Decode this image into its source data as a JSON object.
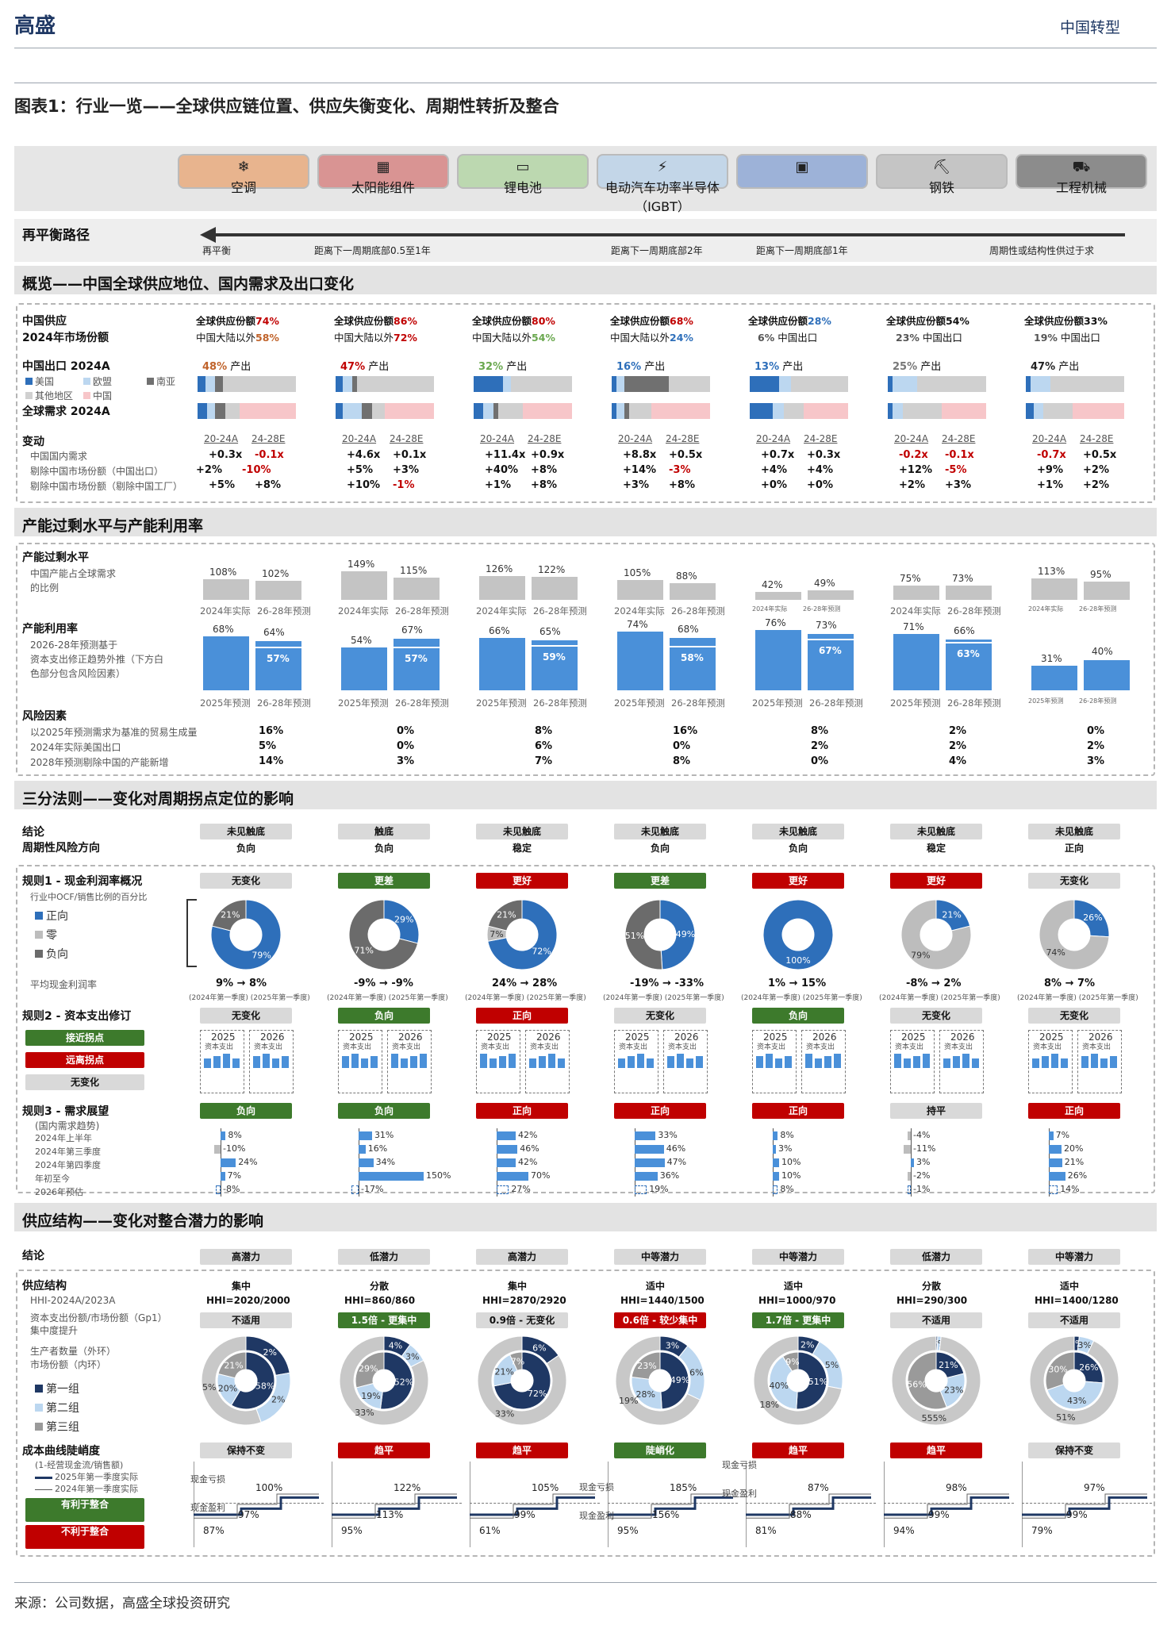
{
  "header": {
    "brand": "高盛",
    "section": "中国转型",
    "title": "图表1：行业一览——全球供应链位置、供应失衡变化、周期性转折及整合"
  },
  "industries": [
    {
      "name": "空调",
      "icon": "air-conditioner-icon",
      "color": "#e8b48e"
    },
    {
      "name": "太阳能组件",
      "icon": "solar-panel-icon",
      "color": "#d99493"
    },
    {
      "name": "锂电池",
      "icon": "battery-icon",
      "color": "#bcd8b0"
    },
    {
      "name": "电动汽车功率半导体（IGBT）",
      "icon": "ev-charger-icon",
      "color": "#c3d6e8"
    },
    {
      "name": "",
      "icon": "chip-icon",
      "color": "#9db2d8"
    },
    {
      "name": "钢铁",
      "icon": "mine-cart-icon",
      "color": "#c5c5c5"
    },
    {
      "name": "工程机械",
      "icon": "excavator-icon",
      "color": "#8c8c8c"
    }
  ],
  "rebalance": {
    "title": "再平衡路径",
    "labels": [
      "再平衡",
      "距离下一周期底部0.5至1年",
      "距离下一周期底部2年",
      "距离下一周期底部1年",
      "周期性或结构性供过于求"
    ]
  },
  "overview": {
    "title": "概览——中国全球供应地位、国内需求及出口变化",
    "supply_label": "中国供应",
    "share_label": "2024年市场份额",
    "export_label": "中国出口 2024A",
    "demand_label": "全球需求 2024A",
    "legend": [
      "美国",
      "欧盟",
      "南亚",
      "其他地区",
      "中国"
    ],
    "global_share_prefix": "全球供应份额",
    "global_shares": [
      "74%",
      "86%",
      "80%",
      "68%",
      "28%",
      "54%",
      "33%"
    ],
    "ex_china": [
      {
        "prefix": "中国大陆以外",
        "value": "58%"
      },
      {
        "prefix": "中国大陆以外",
        "value": "72%"
      },
      {
        "prefix": "中国大陆以外",
        "value": "54%"
      },
      {
        "prefix": "中国大陆以外",
        "value": "24%"
      },
      {
        "prefix": "中国出口",
        "value": "6%"
      },
      {
        "prefix": "中国出口",
        "value": "23%"
      },
      {
        "prefix": "中国出口",
        "value": "19%"
      }
    ],
    "exports_pct": [
      "48%",
      "47%",
      "32%",
      "16%",
      "13%",
      "25%",
      "47%"
    ],
    "export_suffix": "产出",
    "change_label": "变动",
    "change_rows": [
      "中国国内需求",
      "剔除中国市场份额（中国出口）",
      "剔除中国市场份额（剔除中国工厂）"
    ],
    "periods": [
      "20-24A",
      "24-28E"
    ],
    "changes": [
      [
        [
          "+0.3x",
          "-0.1x"
        ],
        [
          "+2%",
          "-10%"
        ],
        [
          "+5%",
          "+8%"
        ]
      ],
      [
        [
          "+4.6x",
          "+0.1x"
        ],
        [
          "+5%",
          "+3%"
        ],
        [
          "+10%",
          "-1%"
        ]
      ],
      [
        [
          "+11.4x",
          "+0.9x"
        ],
        [
          "+40%",
          "+8%"
        ],
        [
          "+1%",
          "+8%"
        ]
      ],
      [
        [
          "+8.8x",
          "+0.5x"
        ],
        [
          "+14%",
          "-3%"
        ],
        [
          "+3%",
          "+8%"
        ]
      ],
      [
        [
          "+0.7x",
          "+0.3x"
        ],
        [
          "+4%",
          "+4%"
        ],
        [
          "+0%",
          "+0%"
        ]
      ],
      [
        [
          "-0.2x",
          "-0.1x"
        ],
        [
          "+12%",
          "-5%"
        ],
        [
          "+2%",
          "+3%"
        ]
      ],
      [
        [
          "-0.7x",
          "+0.5x"
        ],
        [
          "+9%",
          "+2%"
        ],
        [
          "+1%",
          "+2%"
        ]
      ]
    ]
  },
  "capacity": {
    "title": "产能过剩水平与产能利用率",
    "excess_label": "产能过剩水平",
    "excess_sub": [
      "中国产能占全球需求",
      "的比例"
    ],
    "excess": [
      [
        "108%",
        "102%"
      ],
      [
        "149%",
        "115%"
      ],
      [
        "126%",
        "122%"
      ],
      [
        "105%",
        "88%"
      ],
      [
        "42%",
        "49%"
      ],
      [
        "75%",
        "73%"
      ],
      [
        "113%",
        "95%"
      ]
    ],
    "excess_x": [
      "2024年实际",
      "26-28年预测"
    ],
    "util_label": "产能利用率",
    "util_sub": [
      "2026-28年预测基于",
      "资本支出修正趋势外推（下方白",
      "色部分包含风险因素）"
    ],
    "util": [
      [
        "68%",
        "64%",
        "57%"
      ],
      [
        "54%",
        "67%",
        "57%"
      ],
      [
        "66%",
        "65%",
        "59%"
      ],
      [
        "74%",
        "68%",
        "58%"
      ],
      [
        "76%",
        "73%",
        "67%"
      ],
      [
        "71%",
        "66%",
        "63%"
      ],
      [
        "31%",
        "40%",
        ""
      ]
    ],
    "util_x": [
      "2025年预测",
      "26-28年预测"
    ],
    "risk_label": "风险因素",
    "risk_rows": [
      "以2025年预测需求为基准的贸易生成量",
      "2024年实际美国出口",
      "2028年预测剔除中国的产能新增"
    ],
    "risk": [
      [
        "16%",
        "5%",
        "14%"
      ],
      [
        "0%",
        "0%",
        "3%"
      ],
      [
        "8%",
        "6%",
        "7%"
      ],
      [
        "16%",
        "0%",
        "8%"
      ],
      [
        "8%",
        "2%",
        "0%"
      ],
      [
        "2%",
        "2%",
        "4%"
      ],
      [
        "0%",
        "2%",
        "3%"
      ]
    ]
  },
  "rules": {
    "title": "三分法则——变化对周期拐点定位的影响",
    "conclusion_label": "结论",
    "direction_label": "周期性风险方向",
    "conclusion": [
      "未见触底",
      "触底",
      "未见触底",
      "未见触底",
      "未见触底",
      "未见触底",
      "未见触底"
    ],
    "direction": [
      "负向",
      "负向",
      "稳定",
      "负向",
      "负向",
      "稳定",
      "正向"
    ],
    "rule1_label": "规则1 - 现金利润率概况",
    "rule1_sub": "行业中OCF/销售比例的百分比",
    "pie_legend": [
      "正向",
      "零",
      "负向"
    ],
    "rule1_status": [
      {
        "t": "无变化",
        "c": "gray"
      },
      {
        "t": "更差",
        "c": "green"
      },
      {
        "t": "更好",
        "c": "red"
      },
      {
        "t": "更差",
        "c": "green"
      },
      {
        "t": "更好",
        "c": "red"
      },
      {
        "t": "更好",
        "c": "red"
      },
      {
        "t": "无变化",
        "c": "gray"
      }
    ],
    "pies": [
      [
        79,
        0,
        21
      ],
      [
        29,
        0,
        71
      ],
      [
        72,
        7,
        21
      ],
      [
        49,
        0,
        51
      ],
      [
        100,
        0,
        0
      ],
      [
        21,
        79,
        0
      ],
      [
        26,
        74,
        0
      ]
    ],
    "margin_label": "平均现金利润率",
    "margins": [
      "9% → 8%",
      "-9% → -9%",
      "24% → 28%",
      "-19% → -33%",
      "1% → 15%",
      "-8% → 2%",
      "8% → 7%"
    ],
    "margin_sub": "(2024年第一季度) (2025年第一季度)",
    "rule2_label": "规则2 - 资本支出修订",
    "rule2_legend": [
      {
        "t": "接近拐点",
        "c": "green"
      },
      {
        "t": "远离拐点",
        "c": "red"
      },
      {
        "t": "无变化",
        "c": "gray"
      }
    ],
    "rule2_status": [
      {
        "t": "无变化",
        "c": "gray"
      },
      {
        "t": "负向",
        "c": "green"
      },
      {
        "t": "正向",
        "c": "red"
      },
      {
        "t": "无变化",
        "c": "gray"
      },
      {
        "t": "负向",
        "c": "green"
      },
      {
        "t": "无变化",
        "c": "gray"
      },
      {
        "t": "无变化",
        "c": "gray"
      }
    ],
    "capex_years": [
      "2025",
      "2026"
    ],
    "capex_sub": "资本支出",
    "rule3_label": "规则3 - 需求展望",
    "rule3_sub": "(国内需求趋势)",
    "rule3_rows": [
      "2024年上半年",
      "2024年第三季度",
      "2024年第四季度",
      "年初至今",
      "2026年预估"
    ],
    "rule3_status": [
      {
        "t": "负向",
        "c": "green"
      },
      {
        "t": "负向",
        "c": "green"
      },
      {
        "t": "正向",
        "c": "red"
      },
      {
        "t": "正向",
        "c": "red"
      },
      {
        "t": "正向",
        "c": "red"
      },
      {
        "t": "持平",
        "c": "gray"
      },
      {
        "t": "正向",
        "c": "red"
      }
    ],
    "demand": [
      [
        8,
        -10,
        24,
        7,
        -8
      ],
      [
        31,
        16,
        34,
        150,
        -17
      ],
      [
        42,
        46,
        42,
        70,
        27
      ],
      [
        33,
        46,
        47,
        36,
        19
      ],
      [
        8,
        3,
        10,
        10,
        8
      ],
      [
        -4,
        -11,
        3,
        -2,
        -1
      ],
      [
        7,
        20,
        21,
        26,
        14
      ]
    ]
  },
  "supply": {
    "title": "供应结构——变化对整合潜力的影响",
    "conclusion_label": "结论",
    "conclusion": [
      "高潜力",
      "低潜力",
      "高潜力",
      "中等潜力",
      "中等潜力",
      "低潜力",
      "中等潜力"
    ],
    "structure_label": "供应结构",
    "structure_sub": [
      "HHI-2024A/2023A",
      "资本支出份额/市场份额（Gp1）",
      "集中度提升",
      "生产者数量（外环）",
      "市场份额（内环）"
    ],
    "legend": [
      "第一组",
      "第二组",
      "第三组"
    ],
    "structure": [
      "集中",
      "分散",
      "集中",
      "适中",
      "适中",
      "分散",
      "适中"
    ],
    "hhi": [
      "HHI=2020/2000",
      "HHI=860/860",
      "HHI=2870/2920",
      "HHI=1440/1500",
      "HHI=1000/970",
      "HHI=290/300",
      "HHI=1400/1280"
    ],
    "capex_ratio": [
      {
        "t": "不适用",
        "c": "gray"
      },
      {
        "t": "1.5倍 - 更集中",
        "c": "green"
      },
      {
        "t": "0.9倍 - 无变化",
        "c": "gray"
      },
      {
        "t": "0.6倍 - 较少集中",
        "c": "red"
      },
      {
        "t": "1.7倍 - 更集中",
        "c": "green"
      },
      {
        "t": "不适用",
        "c": "gray"
      },
      {
        "t": "不适用",
        "c": "gray"
      }
    ],
    "inner": [
      [
        58,
        20,
        21
      ],
      [
        52,
        19,
        29
      ],
      [
        72,
        21,
        7
      ],
      [
        49,
        28,
        23
      ],
      [
        51,
        40,
        9
      ],
      [
        21,
        23,
        56
      ],
      [
        26,
        43,
        30
      ]
    ],
    "outer": [
      [
        2,
        2,
        5
      ],
      [
        4,
        3,
        33
      ],
      [
        6,
        0,
        33
      ],
      [
        3,
        6,
        19
      ],
      [
        2,
        5,
        18
      ],
      [
        3,
        7,
        555
      ],
      [
        1,
        3,
        51
      ]
    ],
    "cost_label": "成本曲线陡峭度",
    "cost_sub": "(1-经营现金流/销售额)",
    "cost_legend": [
      "2025年第一季度实际",
      "2024年第一季度实际"
    ],
    "good_label": "有利于整合",
    "bad_label": "不利于整合",
    "cost_status": [
      {
        "t": "保持不变",
        "c": "gray"
      },
      {
        "t": "趋平",
        "c": "red"
      },
      {
        "t": "趋平",
        "c": "red"
      },
      {
        "t": "陡峭化",
        "c": "green"
      },
      {
        "t": "趋平",
        "c": "red"
      },
      {
        "t": "趋平",
        "c": "red"
      },
      {
        "t": "保持不变",
        "c": "gray"
      }
    ],
    "cash_loss": "现金亏损",
    "cash_profit": "现金盈利",
    "cost_vals": [
      [
        "100%",
        "97%",
        "87%"
      ],
      [
        "122%",
        "113%",
        "95%"
      ],
      [
        "105%",
        "99%",
        "61%"
      ],
      [
        "185%",
        "156%",
        "95%"
      ],
      [
        "87%",
        "88%",
        "81%"
      ],
      [
        "98%",
        "99%",
        "94%"
      ],
      [
        "97%",
        "99%",
        "79%"
      ]
    ]
  },
  "source": "来源：公司数据，高盛全球投资研究"
}
